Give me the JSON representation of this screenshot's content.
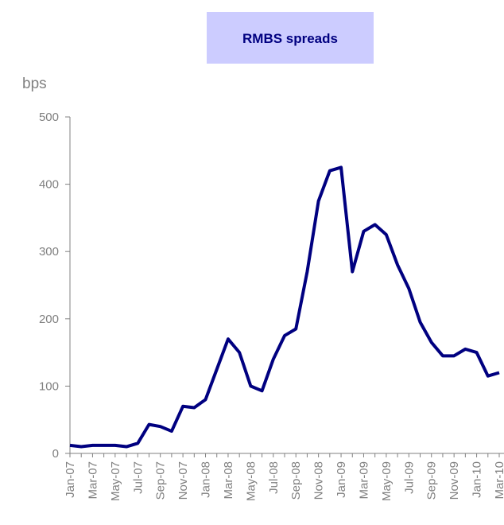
{
  "chart_data": {
    "type": "line",
    "title": "RMBS spreads",
    "y_label": "bps",
    "categories": [
      "Jan-07",
      null,
      "Mar-07",
      null,
      "May-07",
      null,
      "Jul-07",
      null,
      "Sep-07",
      null,
      "Nov-07",
      null,
      "Jan-08",
      null,
      "Mar-08",
      null,
      "May-08",
      null,
      "Jul-08",
      null,
      "Sep-08",
      null,
      "Nov-08",
      null,
      "Jan-09",
      null,
      "Mar-09",
      null,
      "May-09",
      null,
      "Jul-09",
      null,
      "Sep-09",
      null,
      "Nov-09",
      null,
      "Jan-10",
      null,
      "Mar-10"
    ],
    "series": [
      {
        "name": "RMBS",
        "color": "#000080",
        "values": [
          12,
          10,
          12,
          12,
          12,
          10,
          15,
          43,
          40,
          33,
          70,
          68,
          80,
          125,
          170,
          150,
          100,
          93,
          140,
          175,
          185,
          270,
          375,
          420,
          425,
          270,
          330,
          340,
          325,
          280,
          245,
          195,
          165,
          145,
          145,
          155,
          150,
          115,
          120
        ]
      }
    ],
    "ylim": [
      0,
      500
    ],
    "yticks": [
      0,
      100,
      200,
      300,
      400,
      500
    ]
  }
}
